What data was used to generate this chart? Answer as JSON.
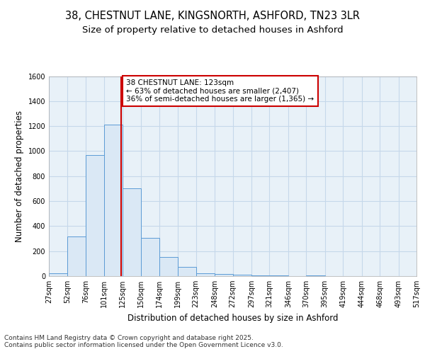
{
  "title1": "38, CHESTNUT LANE, KINGSNORTH, ASHFORD, TN23 3LR",
  "title2": "Size of property relative to detached houses in Ashford",
  "xlabel": "Distribution of detached houses by size in Ashford",
  "ylabel": "Number of detached properties",
  "bin_edges": [
    27,
    52,
    76,
    101,
    125,
    150,
    174,
    199,
    223,
    248,
    272,
    297,
    321,
    346,
    370,
    395,
    419,
    444,
    468,
    493,
    517
  ],
  "bar_heights": [
    20,
    320,
    970,
    1210,
    700,
    305,
    155,
    75,
    25,
    15,
    10,
    5,
    5,
    0,
    5,
    0,
    0,
    0,
    0,
    0,
    10
  ],
  "bar_color": "#dae8f5",
  "bar_edge_color": "#5b9bd5",
  "red_line_x": 123,
  "annotation_text": "38 CHESTNUT LANE: 123sqm\n← 63% of detached houses are smaller (2,407)\n36% of semi-detached houses are larger (1,365) →",
  "annotation_box_facecolor": "#ffffff",
  "annotation_box_edgecolor": "#cc0000",
  "ylim": [
    0,
    1600
  ],
  "yticks": [
    0,
    200,
    400,
    600,
    800,
    1000,
    1200,
    1400,
    1600
  ],
  "grid_color": "#c5d8ea",
  "background_color": "#e8f1f8",
  "footer_text": "Contains HM Land Registry data © Crown copyright and database right 2025.\nContains public sector information licensed under the Open Government Licence v3.0.",
  "title_fontsize": 10.5,
  "subtitle_fontsize": 9.5,
  "axis_label_fontsize": 8.5,
  "tick_fontsize": 7,
  "annotation_fontsize": 7.5,
  "footer_fontsize": 6.5
}
